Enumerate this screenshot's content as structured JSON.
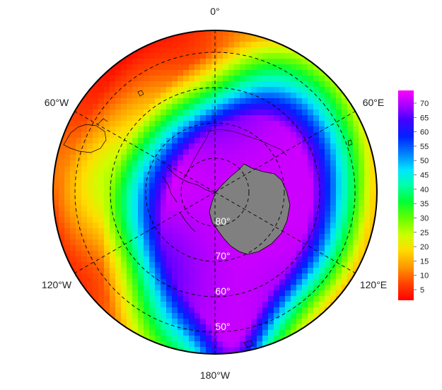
{
  "map": {
    "projection": "south-polar stereographic",
    "longitude_labels": {
      "top": "0°",
      "upper_left": "60°W",
      "upper_right": "60°E",
      "lower_left": "120°W",
      "lower_right": "120°E",
      "bottom": "180°W"
    },
    "latitude_labels": [
      "80°",
      "70°",
      "60°",
      "50°"
    ],
    "graticule_latitudes": [
      80,
      70,
      60,
      50
    ],
    "graticule_longitudes": [
      0,
      60,
      120,
      180,
      240,
      300
    ],
    "land_color": "#808080",
    "field": {
      "description_colors": "rainbow scale red(low) to magenta(high)",
      "antarctic_max": 72,
      "ring_low": 3,
      "value_range": [
        0,
        75
      ]
    }
  },
  "colorbar": {
    "ticks": [
      "70",
      "65",
      "60",
      "55",
      "50",
      "45",
      "40",
      "35",
      "30",
      "25",
      "20",
      "15",
      "10",
      "5"
    ],
    "range": [
      0,
      75
    ],
    "colors": [
      "#ff0000",
      "#ff5500",
      "#ffaa00",
      "#ffff00",
      "#aaff00",
      "#55ff00",
      "#00ff00",
      "#00ff80",
      "#00ffff",
      "#0080ff",
      "#0000ff",
      "#5500ff",
      "#aa00ff",
      "#ff00ff"
    ]
  }
}
